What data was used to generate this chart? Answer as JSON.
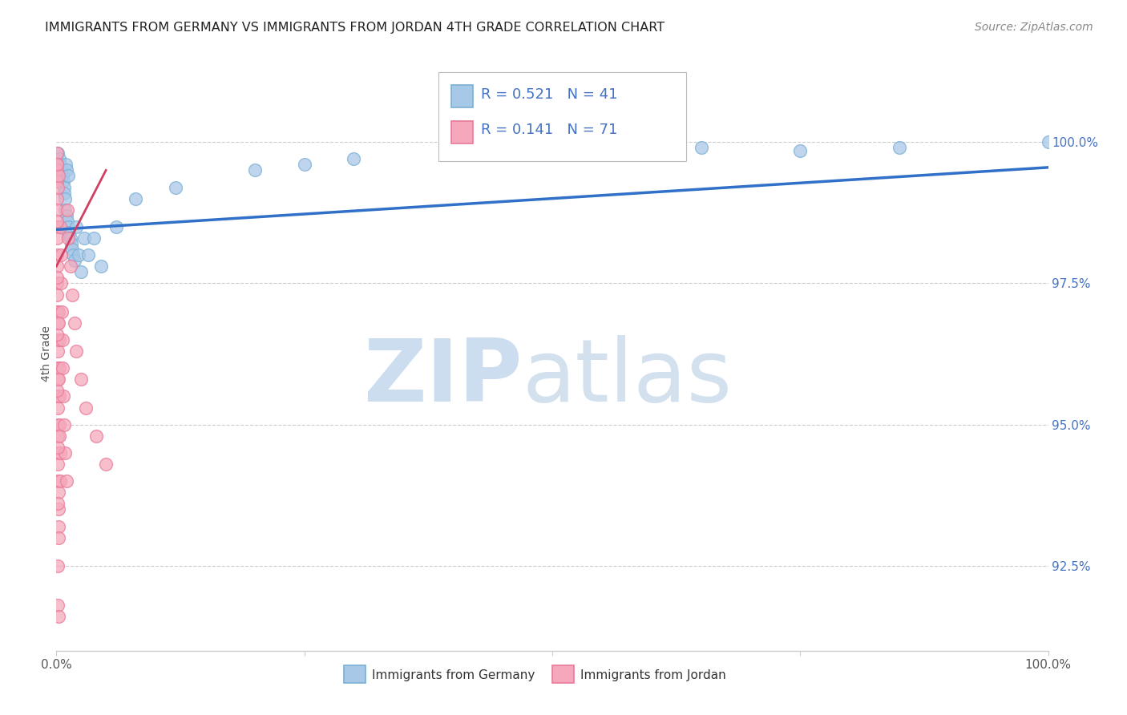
{
  "title": "IMMIGRANTS FROM GERMANY VS IMMIGRANTS FROM JORDAN 4TH GRADE CORRELATION CHART",
  "source": "Source: ZipAtlas.com",
  "ylabel": "4th Grade",
  "ylim": [
    91.0,
    101.5
  ],
  "xlim": [
    0.0,
    100.0
  ],
  "yticks": [
    100.0,
    97.5,
    95.0,
    92.5
  ],
  "ytick_labels": [
    "100.0%",
    "97.5%",
    "95.0%",
    "92.5%"
  ],
  "germany_R": 0.521,
  "germany_N": 41,
  "jordan_R": 0.141,
  "jordan_N": 71,
  "germany_color": "#a8c8e8",
  "jordan_color": "#f5a8bc",
  "germany_edge_color": "#7aafd4",
  "jordan_edge_color": "#e87898",
  "germany_trend_color": "#3070c8",
  "jordan_trend_color": "#d04060",
  "watermark_zip_color": "#cdddf0",
  "watermark_atlas_color": "#b0c8e0",
  "legend_germany": "Immigrants from Germany",
  "legend_jordan": "Immigrants from Jordan",
  "title_color": "#222222",
  "source_color": "#888888",
  "axis_color": "#cccccc",
  "right_tick_color": "#4472c4",
  "ylabel_color": "#555555",
  "legend_text_color": "#333333",
  "germany_x": [
    0.15,
    0.3,
    0.4,
    0.5,
    0.6,
    0.7,
    0.75,
    0.8,
    0.85,
    0.9,
    0.95,
    1.0,
    1.05,
    1.1,
    1.15,
    1.2,
    1.3,
    1.4,
    1.5,
    1.6,
    1.7,
    1.8,
    2.0,
    2.2,
    2.5,
    2.8,
    3.2,
    3.8,
    4.5,
    6.0,
    8.0,
    12.0,
    20.0,
    25.0,
    30.0,
    40.0,
    50.0,
    65.0,
    75.0,
    85.0,
    100.0
  ],
  "germany_y": [
    99.8,
    99.7,
    99.6,
    99.5,
    99.4,
    99.3,
    99.2,
    99.1,
    99.0,
    98.8,
    99.6,
    98.7,
    99.5,
    98.6,
    99.4,
    98.5,
    98.4,
    98.3,
    98.2,
    98.1,
    98.0,
    97.9,
    98.5,
    98.0,
    97.7,
    98.3,
    98.0,
    98.3,
    97.8,
    98.5,
    99.0,
    99.2,
    99.5,
    99.6,
    99.7,
    99.8,
    99.8,
    99.9,
    99.85,
    99.9,
    100.0
  ],
  "jordan_x": [
    0.02,
    0.03,
    0.04,
    0.05,
    0.05,
    0.06,
    0.06,
    0.07,
    0.07,
    0.08,
    0.08,
    0.09,
    0.09,
    0.1,
    0.1,
    0.11,
    0.11,
    0.12,
    0.12,
    0.13,
    0.13,
    0.14,
    0.15,
    0.15,
    0.16,
    0.17,
    0.18,
    0.19,
    0.2,
    0.2,
    0.22,
    0.24,
    0.26,
    0.28,
    0.3,
    0.32,
    0.35,
    0.38,
    0.4,
    0.45,
    0.5,
    0.55,
    0.6,
    0.65,
    0.7,
    0.8,
    0.9,
    1.0,
    1.1,
    1.2,
    1.4,
    1.6,
    1.8,
    2.0,
    2.5,
    3.0,
    4.0,
    5.0,
    0.05,
    0.06,
    0.07,
    0.08,
    0.09,
    0.1,
    0.12,
    0.14,
    0.16,
    0.18,
    0.2,
    0.25,
    0.3
  ],
  "jordan_y": [
    99.8,
    99.6,
    99.5,
    99.3,
    99.0,
    98.8,
    98.5,
    98.3,
    98.0,
    97.8,
    97.5,
    97.3,
    97.0,
    96.8,
    96.5,
    96.3,
    96.0,
    95.8,
    95.5,
    95.3,
    95.0,
    94.8,
    99.2,
    94.5,
    94.3,
    94.0,
    93.8,
    93.5,
    99.4,
    93.2,
    93.0,
    97.0,
    96.5,
    96.0,
    95.5,
    95.0,
    94.5,
    94.0,
    98.5,
    98.0,
    97.5,
    97.0,
    96.5,
    96.0,
    95.5,
    95.0,
    94.5,
    94.0,
    98.8,
    98.3,
    97.8,
    97.3,
    96.8,
    96.3,
    95.8,
    95.3,
    94.8,
    94.3,
    99.6,
    98.6,
    97.6,
    96.6,
    95.6,
    94.6,
    93.6,
    92.5,
    91.8,
    91.6,
    96.8,
    95.8,
    94.8
  ]
}
